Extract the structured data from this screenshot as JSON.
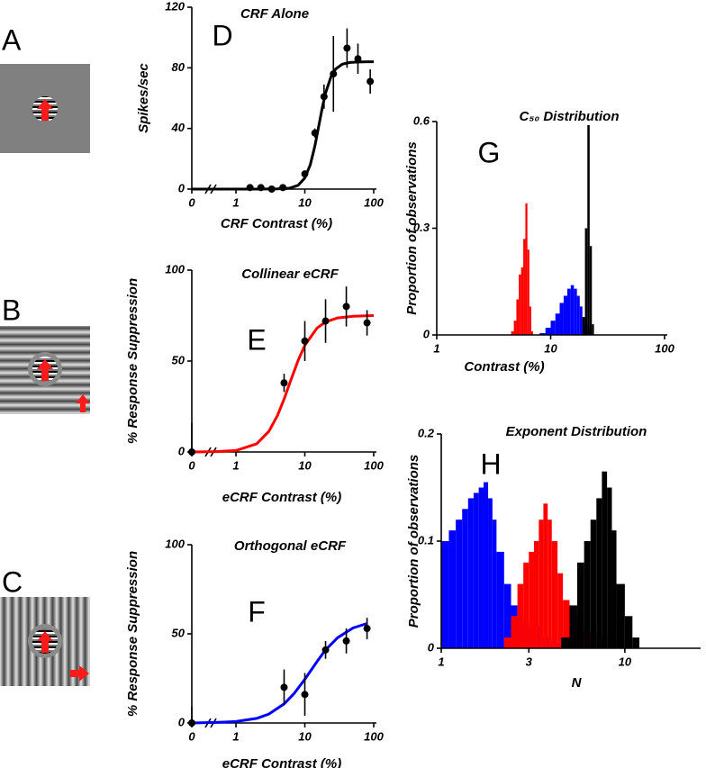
{
  "stimuli": [
    {
      "panel": "A"
    },
    {
      "panel": "B"
    },
    {
      "panel": "C"
    }
  ],
  "chart_data": [
    {
      "type": "scatter",
      "panel": "D",
      "title": "CRF Alone",
      "x_label": "CRF Contrast (%)",
      "y_label": "Spikes/sec",
      "log_x": true,
      "xlim": [
        0,
        100
      ],
      "xbreak": 0.5,
      "xticks": [
        0,
        1,
        10,
        100
      ],
      "ylim": [
        0,
        120
      ],
      "yticks": [
        0,
        40,
        80,
        120
      ],
      "points": {
        "color": "#000000",
        "x": [
          1.6,
          2.3,
          3.3,
          4.8,
          10,
          14,
          19,
          26,
          41,
          59,
          89
        ],
        "values": [
          1,
          1,
          0,
          1,
          10,
          37,
          61,
          76,
          93,
          86,
          71
        ],
        "errors": [
          0.5,
          0.5,
          0.5,
          0.5,
          2,
          3,
          8,
          25,
          13,
          10,
          8
        ]
      },
      "fit": {
        "color": "#000000",
        "x": [
          0,
          0.5,
          1,
          2,
          4,
          6,
          8,
          10,
          12,
          14,
          16,
          18,
          20,
          24,
          28,
          35,
          45,
          60,
          80,
          100
        ],
        "values": [
          0,
          0,
          0,
          0,
          0.1,
          0.6,
          2.5,
          7.3,
          16.1,
          28.5,
          42,
          54,
          63.3,
          74.2,
          79.2,
          82.4,
          83.5,
          83.8,
          84,
          84
        ]
      }
    },
    {
      "type": "scatter",
      "panel": "E",
      "title": "Collinear eCRF",
      "x_label": "eCRF Contrast (%)",
      "y_label": "% Response Suppression",
      "log_x": true,
      "xlim": [
        0,
        100
      ],
      "xbreak": 0.5,
      "xticks": [
        0,
        1,
        10,
        100
      ],
      "ylim": [
        0,
        100
      ],
      "yticks": [
        0,
        50,
        100
      ],
      "points": {
        "color": "#000000",
        "x": [
          0,
          5,
          10,
          20,
          40,
          80
        ],
        "values": [
          0,
          38,
          61,
          72,
          80,
          71
        ],
        "errors": [
          16,
          5,
          11,
          12,
          11,
          7
        ]
      },
      "fit": {
        "color": "#ff0000",
        "x": [
          0,
          0.5,
          1,
          2,
          3,
          4,
          5,
          6,
          8,
          10,
          15,
          20,
          30,
          50,
          100
        ],
        "values": [
          0,
          0.2,
          0.8,
          4.5,
          11.3,
          20,
          29.1,
          37.5,
          50.4,
          58.6,
          68.1,
          71.5,
          73.7,
          74.6,
          75
        ]
      }
    },
    {
      "type": "scatter",
      "panel": "F",
      "title": "Orthogonal eCRF",
      "x_label": "eCRF Contrast (%)",
      "y_label": "% Response Suppression",
      "log_x": true,
      "xlim": [
        0,
        100
      ],
      "xbreak": 0.5,
      "xticks": [
        0,
        1,
        10,
        100
      ],
      "ylim": [
        0,
        100
      ],
      "yticks": [
        0,
        50,
        100
      ],
      "points": {
        "color": "#000000",
        "x": [
          0,
          5,
          10,
          20,
          40,
          80
        ],
        "values": [
          0,
          20,
          16,
          41,
          46,
          53
        ],
        "errors": [
          9,
          10,
          12,
          5,
          7,
          6
        ]
      },
      "fit": {
        "color": "#0000ff",
        "x": [
          0,
          0.5,
          1,
          2,
          3,
          5,
          7,
          10,
          15,
          20,
          30,
          50,
          80
        ],
        "values": [
          0,
          0.3,
          0.8,
          2.6,
          5,
          10.7,
          16.6,
          24.5,
          34.4,
          41,
          47.9,
          53.3,
          55.8
        ]
      }
    },
    {
      "type": "histogram",
      "panel": "G",
      "title": "C₅₀ Distribution",
      "x_label": "Contrast (%)",
      "y_label": "Proportion of observations",
      "log_x": true,
      "xlim": [
        1,
        100
      ],
      "xticks": [
        1,
        10,
        100
      ],
      "ylim": [
        0,
        0.6
      ],
      "yticks": [
        0,
        0.3,
        0.6
      ],
      "series": [
        {
          "color": "#ff0000",
          "bins": [
            4.5,
            4.75,
            5,
            5.25,
            5.5,
            5.75,
            6,
            6.25,
            6.5,
            6.75,
            7
          ],
          "values": [
            0.01,
            0.04,
            0.1,
            0.17,
            0.19,
            0.27,
            0.37,
            0.24,
            0.08,
            0.01
          ]
        },
        {
          "color": "#0000ff",
          "bins": [
            8,
            9,
            10,
            11,
            12,
            13,
            14,
            15,
            16,
            17,
            18,
            19,
            20,
            21,
            22
          ],
          "values": [
            0.005,
            0.02,
            0.04,
            0.06,
            0.09,
            0.11,
            0.13,
            0.14,
            0.13,
            0.11,
            0.08,
            0.05,
            0.03,
            0.015
          ]
        },
        {
          "color": "#000000",
          "bins": [
            19,
            20,
            21,
            22,
            23,
            24
          ],
          "values": [
            0.05,
            0.3,
            0.59,
            0.25,
            0.03
          ]
        }
      ]
    },
    {
      "type": "histogram",
      "panel": "H",
      "title": "Exponent Distribution",
      "x_label": "N",
      "y_label": "Proportion of observations",
      "log_x": true,
      "xlim": [
        1,
        25
      ],
      "xticks": [
        1,
        3,
        10
      ],
      "ylim": [
        0,
        0.2
      ],
      "yticks": [
        0,
        0.1,
        0.2
      ],
      "series": [
        {
          "color": "#0000ff",
          "bins": [
            1,
            1.1,
            1.2,
            1.3,
            1.4,
            1.5,
            1.6,
            1.7,
            1.8,
            1.9,
            2.0,
            2.2,
            2.4,
            2.6,
            2.8,
            3.0,
            3.5,
            4,
            5
          ],
          "values": [
            0.1,
            0.11,
            0.12,
            0.13,
            0.14,
            0.145,
            0.15,
            0.155,
            0.14,
            0.12,
            0.09,
            0.06,
            0.04,
            0.03,
            0.025,
            0.02,
            0.01,
            0.005
          ]
        },
        {
          "color": "#ff0000",
          "bins": [
            2.2,
            2.4,
            2.6,
            2.8,
            3.0,
            3.2,
            3.4,
            3.6,
            3.8,
            4.0,
            4.3,
            4.6,
            5,
            5.5,
            6,
            7,
            8
          ],
          "values": [
            0.01,
            0.03,
            0.06,
            0.08,
            0.09,
            0.1,
            0.12,
            0.135,
            0.12,
            0.1,
            0.07,
            0.045,
            0.03,
            0.02,
            0.015,
            0.01
          ]
        },
        {
          "color": "#000000",
          "bins": [
            4.5,
            5,
            5.5,
            6,
            6.5,
            7,
            7.5,
            8,
            8.5,
            9,
            10,
            11,
            12
          ],
          "values": [
            0.01,
            0.04,
            0.08,
            0.1,
            0.12,
            0.14,
            0.165,
            0.15,
            0.11,
            0.06,
            0.03,
            0.01
          ]
        }
      ]
    }
  ]
}
